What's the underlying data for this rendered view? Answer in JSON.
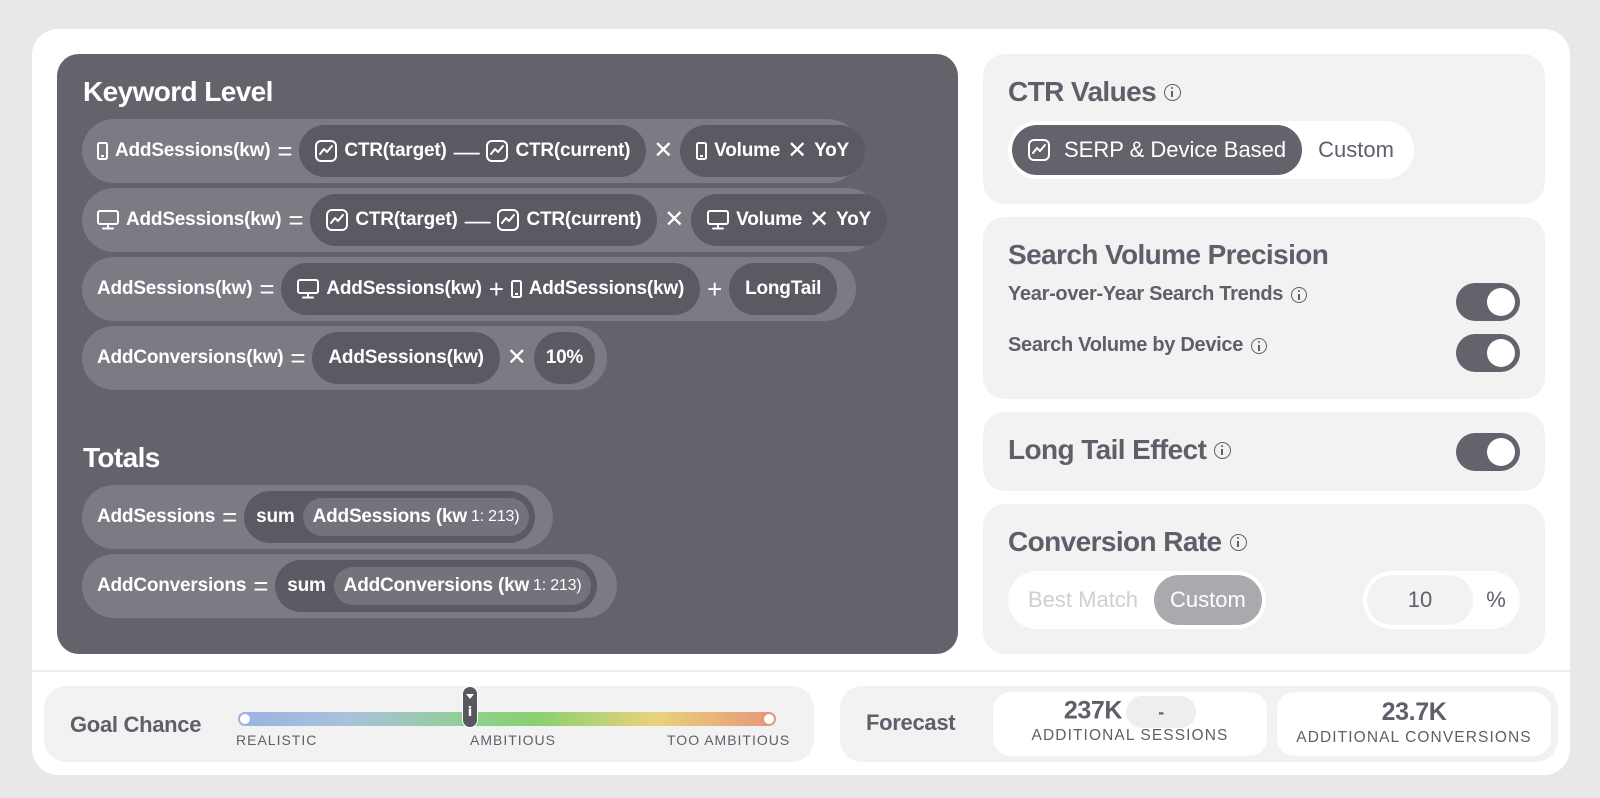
{
  "keyword_level": {
    "title": "Keyword Level",
    "r1": {
      "lhs": "AddSessions(kw)",
      "eq": "=",
      "ctr_target": "CTR(target)",
      "minus": "—",
      "ctr_current": "CTR(current)",
      "times": "✕",
      "volume": "Volume",
      "times2": "✕",
      "yoy": "YoY"
    },
    "r2": {
      "lhs": "AddSessions(kw)",
      "eq": "=",
      "ctr_target": "CTR(target)",
      "minus": "—",
      "ctr_current": "CTR(current)",
      "times": "✕",
      "volume": "Volume",
      "times2": "✕",
      "yoy": "YoY"
    },
    "r3": {
      "lhs": "AddSessions(kw)",
      "eq": "=",
      "desktop": "AddSessions(kw)",
      "plus": "+",
      "mobile": "AddSessions(kw)",
      "plus2": "+",
      "longtail": "LongTail"
    },
    "r4": {
      "lhs": "AddConversions(kw)",
      "eq": "=",
      "sessions": "AddSessions(kw)",
      "times": "✕",
      "rate": "10%"
    }
  },
  "totals": {
    "title": "Totals",
    "r1": {
      "lhs": "AddSessions",
      "eq": "=",
      "fn": "sum",
      "arg": "AddSessions (kw",
      "range": "1: 213)"
    },
    "r2": {
      "lhs": "AddConversions",
      "eq": "=",
      "fn": "sum",
      "arg": "AddConversions (kw",
      "range": "1: 213)"
    }
  },
  "ctr_values": {
    "title": "CTR Values",
    "options": [
      "SERP & Device Based",
      "Custom"
    ],
    "selected": "SERP & Device Based"
  },
  "search_volume": {
    "title": "Search Volume Precision",
    "yoy_label": "Year-over-Year Search Trends",
    "yoy_on": true,
    "device_label": "Search Volume by Device",
    "device_on": true
  },
  "long_tail": {
    "title": "Long Tail Effect",
    "on": true
  },
  "conversion_rate": {
    "title": "Conversion Rate",
    "options": [
      "Best Match",
      "Custom"
    ],
    "selected": "Custom",
    "value": "10",
    "unit": "%"
  },
  "goal_chance": {
    "label": "Goal Chance",
    "ticks": [
      "REALISTIC",
      "AMBITIOUS",
      "TOO AMBITIOUS"
    ],
    "level": 0.43
  },
  "forecast": {
    "label": "Forecast",
    "sessions_value": "237K",
    "sessions_delta": "-",
    "sessions_caption": "ADDITIONAL SESSIONS",
    "conversions_value": "23.7K",
    "conversions_caption": "ADDITIONAL CONVERSIONS"
  },
  "colors": {
    "dark_panel": "#63636b",
    "pill": "#5a5a62",
    "row": "#7b7b84",
    "light_panel": "#f2f2f3"
  },
  "icons": [
    "phone-icon",
    "desktop-icon",
    "trend-chart-icon",
    "info-icon"
  ]
}
